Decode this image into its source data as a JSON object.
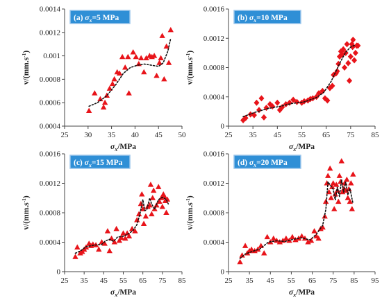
{
  "colors": {
    "marker": "#e8141a",
    "fit": "#111111",
    "label_box": "#2f8fd6",
    "label_border": "#9cc6ec",
    "axis": "#444444"
  },
  "chart_data": [
    {
      "type": "scatter",
      "panel_label": "(a) σx=5 MPa",
      "marker": "triangle",
      "xlabel": "σx/MPa",
      "ylabel": "v/(mm.s-1)",
      "xlim": [
        25,
        50
      ],
      "ylim": [
        0.0004,
        0.0014
      ],
      "xticks": [
        "25",
        "30",
        "35",
        "40",
        "45",
        "50"
      ],
      "yticks": [
        "0.0004",
        "0.0006",
        "0.0008",
        "0.001",
        "0.0012",
        "0.0014"
      ],
      "points": [
        [
          30.2,
          0.00053
        ],
        [
          31.4,
          0.00068
        ],
        [
          32.6,
          0.00063
        ],
        [
          33.3,
          0.00056
        ],
        [
          33.6,
          0.0006
        ],
        [
          34,
          0.00066
        ],
        [
          34.6,
          0.00072
        ],
        [
          35.2,
          0.00076
        ],
        [
          35.6,
          0.0008
        ],
        [
          36.2,
          0.00086
        ],
        [
          36.7,
          0.00085
        ],
        [
          37.3,
          0.00099
        ],
        [
          37.9,
          0.0009
        ],
        [
          38.5,
          0.00099
        ],
        [
          38.7,
          0.00068
        ],
        [
          39.6,
          0.00103
        ],
        [
          40.2,
          0.00099
        ],
        [
          40.8,
          0.00093
        ],
        [
          41.3,
          0.00098
        ],
        [
          41.9,
          0.00086
        ],
        [
          42.4,
          0.00098
        ],
        [
          43.1,
          0.001
        ],
        [
          43.6,
          0.00099
        ],
        [
          44.1,
          0.001
        ],
        [
          44.6,
          0.00083
        ],
        [
          45.2,
          0.00094
        ],
        [
          45.5,
          0.00098
        ],
        [
          45.8,
          0.00117
        ],
        [
          46.2,
          0.0008
        ],
        [
          46.7,
          0.00108
        ],
        [
          47.2,
          0.00094
        ],
        [
          47.6,
          0.00122
        ]
      ],
      "fit": [
        [
          30.2,
          0.00057
        ],
        [
          32,
          0.0006
        ],
        [
          34,
          0.00066
        ],
        [
          36,
          0.00076
        ],
        [
          37.5,
          0.00085
        ],
        [
          39,
          0.0009
        ],
        [
          40.5,
          0.00092
        ],
        [
          42,
          0.00093
        ],
        [
          43.5,
          0.00092
        ],
        [
          45,
          0.00091
        ],
        [
          46,
          0.00094
        ],
        [
          47,
          0.00104
        ],
        [
          47.6,
          0.00115
        ]
      ]
    },
    {
      "type": "scatter",
      "panel_label": "(b) σx=10 MPa",
      "marker": "diamond",
      "xlabel": "σx/MPa",
      "ylabel": "v/(mm.s-1)",
      "xlim": [
        25,
        85
      ],
      "ylim": [
        0,
        0.0016
      ],
      "xticks": [
        "25",
        "35",
        "45",
        "55",
        "65",
        "75",
        "85"
      ],
      "yticks": [
        "0",
        "0.0004",
        "0.0008",
        "0.0012",
        "0.0016"
      ],
      "points": [
        [
          31,
          8e-05
        ],
        [
          32,
          0.00011
        ],
        [
          34,
          0.00016
        ],
        [
          35.5,
          0.00015
        ],
        [
          36.5,
          0.00032
        ],
        [
          37.5,
          0.00022
        ],
        [
          38.5,
          0.00038
        ],
        [
          39.5,
          0.00012
        ],
        [
          40.5,
          0.00025
        ],
        [
          42,
          0.0003
        ],
        [
          43,
          0.00027
        ],
        [
          45,
          0.00032
        ],
        [
          46,
          0.00022
        ],
        [
          47,
          0.00026
        ],
        [
          48.5,
          0.0003
        ],
        [
          50,
          0.00032
        ],
        [
          51.5,
          0.00036
        ],
        [
          53,
          0.00033
        ],
        [
          55,
          0.00032
        ],
        [
          56,
          0.00034
        ],
        [
          57.5,
          0.00035
        ],
        [
          58.5,
          0.00037
        ],
        [
          59.5,
          0.00038
        ],
        [
          61,
          0.0004
        ],
        [
          62,
          0.00045
        ],
        [
          63.5,
          0.00048
        ],
        [
          64.5,
          0.00038
        ],
        [
          65.5,
          0.00035
        ],
        [
          66.5,
          0.00052
        ],
        [
          67.5,
          0.00055
        ],
        [
          68,
          0.0007
        ],
        [
          69,
          0.00072
        ],
        [
          69.5,
          0.00075
        ],
        [
          70,
          0.00085
        ],
        [
          70.5,
          0.00095
        ],
        [
          71,
          0.00102
        ],
        [
          71.5,
          0.00098
        ],
        [
          72,
          0.00105
        ],
        [
          72.5,
          0.0008
        ],
        [
          73,
          0.001
        ],
        [
          73.5,
          0.00112
        ],
        [
          74,
          0.00086
        ],
        [
          74.5,
          0.00062
        ],
        [
          75,
          0.00095
        ],
        [
          75.5,
          0.00112
        ],
        [
          75.8,
          0.00108
        ],
        [
          76,
          0.00118
        ],
        [
          76.5,
          0.0009
        ],
        [
          77,
          0.001
        ],
        [
          77.5,
          0.0011
        ],
        [
          78,
          0.0011
        ]
      ],
      "fit": [
        [
          31,
          0.00013
        ],
        [
          36,
          0.00019
        ],
        [
          41,
          0.00024
        ],
        [
          46,
          0.00027
        ],
        [
          51,
          0.00031
        ],
        [
          56,
          0.00033
        ],
        [
          61,
          0.00039
        ],
        [
          64,
          0.00046
        ],
        [
          67,
          0.00061
        ],
        [
          69,
          0.00075
        ],
        [
          71,
          0.00089
        ],
        [
          73,
          0.00101
        ],
        [
          75,
          0.00108
        ],
        [
          77,
          0.00111
        ]
      ]
    },
    {
      "type": "scatter",
      "panel_label": "(c) σx=15 MPa",
      "marker": "triangle",
      "xlabel": "σx/MPa",
      "ylabel": "v/(mm.s-1)",
      "xlim": [
        25,
        85
      ],
      "ylim": [
        0,
        0.0016
      ],
      "xticks": [
        "25",
        "35",
        "45",
        "55",
        "65",
        "75",
        "85"
      ],
      "yticks": [
        "0",
        "0.0004",
        "0.0008",
        "0.0012",
        "0.0016"
      ],
      "points": [
        [
          30.5,
          0.0002
        ],
        [
          31.5,
          0.00033
        ],
        [
          33,
          0.00025
        ],
        [
          34,
          0.00027
        ],
        [
          35,
          0.0003
        ],
        [
          36,
          0.00033
        ],
        [
          37.5,
          0.00038
        ],
        [
          38.5,
          0.00035
        ],
        [
          39.5,
          0.00037
        ],
        [
          41,
          0.00036
        ],
        [
          42.5,
          0.0003
        ],
        [
          44,
          0.0004
        ],
        [
          45.5,
          0.00038
        ],
        [
          47,
          0.00055
        ],
        [
          48,
          0.00028
        ],
        [
          49,
          0.00045
        ],
        [
          50.5,
          0.0004
        ],
        [
          51.5,
          0.00058
        ],
        [
          53,
          0.00042
        ],
        [
          54,
          0.00046
        ],
        [
          55,
          0.00052
        ],
        [
          56,
          0.00045
        ],
        [
          57,
          0.00052
        ],
        [
          58,
          0.00048
        ],
        [
          59.5,
          0.00058
        ],
        [
          61,
          0.00055
        ],
        [
          62,
          0.0007
        ],
        [
          63,
          0.00078
        ],
        [
          64,
          0.00092
        ],
        [
          64.5,
          0.00105
        ],
        [
          65,
          0.00085
        ],
        [
          65.5,
          0.00065
        ],
        [
          66.5,
          0.00075
        ],
        [
          67.5,
          0.00088
        ],
        [
          68.5,
          0.0009
        ],
        [
          69,
          0.00118
        ],
        [
          69.5,
          0.00078
        ],
        [
          70,
          0.001
        ],
        [
          70.5,
          0.0011
        ],
        [
          71,
          0.00085
        ],
        [
          72,
          0.0009
        ],
        [
          73,
          0.00115
        ],
        [
          73.5,
          0.00095
        ],
        [
          74.5,
          0.001
        ],
        [
          75,
          0.00088
        ],
        [
          75.5,
          0.00105
        ],
        [
          76,
          0.00102
        ],
        [
          76.5,
          0.00096
        ],
        [
          77,
          0.0008
        ],
        [
          77.5,
          0.00098
        ]
      ],
      "fit": [
        [
          30.5,
          0.00025
        ],
        [
          33,
          0.00028
        ],
        [
          36,
          0.00034
        ],
        [
          40,
          0.00036
        ],
        [
          44,
          0.00037
        ],
        [
          46,
          0.00042
        ],
        [
          48,
          0.00044
        ],
        [
          50,
          0.00041
        ],
        [
          52,
          0.00047
        ],
        [
          55,
          0.00048
        ],
        [
          58,
          0.00052
        ],
        [
          60,
          0.00056
        ],
        [
          62,
          0.00064
        ],
        [
          63.5,
          0.00078
        ],
        [
          65,
          0.00098
        ],
        [
          66,
          0.00083
        ],
        [
          67,
          0.00084
        ],
        [
          68.5,
          0.001
        ],
        [
          69.5,
          0.00092
        ],
        [
          71,
          0.00085
        ],
        [
          73,
          0.00098
        ],
        [
          75,
          0.00101
        ],
        [
          77,
          0.00098
        ],
        [
          78,
          0.00092
        ]
      ]
    },
    {
      "type": "scatter",
      "panel_label": "(d) σx=20 MPa",
      "marker": "triangle",
      "xlabel": "σx/MPa",
      "ylabel": "v/(mm.s-1)",
      "xlim": [
        25,
        95
      ],
      "ylim": [
        0,
        0.0016
      ],
      "xticks": [
        "25",
        "35",
        "45",
        "55",
        "65",
        "75",
        "85",
        "95"
      ],
      "yticks": [
        "0",
        "0.0004",
        "0.0008",
        "0.0012",
        "0.0016"
      ],
      "points": [
        [
          30.5,
          0.00013
        ],
        [
          31.5,
          0.00022
        ],
        [
          33,
          0.00035
        ],
        [
          34,
          0.00025
        ],
        [
          35,
          0.00028
        ],
        [
          36,
          0.0003
        ],
        [
          37.5,
          0.00028
        ],
        [
          39,
          0.0003
        ],
        [
          40.5,
          0.00035
        ],
        [
          42,
          0.00025
        ],
        [
          43.5,
          0.00047
        ],
        [
          45,
          0.0004
        ],
        [
          46.5,
          0.00045
        ],
        [
          48,
          0.00042
        ],
        [
          49.5,
          0.0004
        ],
        [
          51,
          0.00042
        ],
        [
          52.5,
          0.00045
        ],
        [
          54,
          0.00042
        ],
        [
          55.5,
          0.00047
        ],
        [
          57,
          0.00043
        ],
        [
          58.5,
          0.00045
        ],
        [
          60,
          0.00048
        ],
        [
          61.5,
          0.00045
        ],
        [
          63,
          0.0004
        ],
        [
          64.5,
          0.00042
        ],
        [
          66,
          0.00055
        ],
        [
          67,
          0.00048
        ],
        [
          68,
          0.00045
        ],
        [
          69,
          0.00058
        ],
        [
          70,
          0.0006
        ],
        [
          71,
          0.00075
        ],
        [
          71.5,
          0.00095
        ],
        [
          72,
          0.0012
        ],
        [
          72.5,
          0.0013
        ],
        [
          73,
          0.00108
        ],
        [
          73.5,
          0.0014
        ],
        [
          74,
          0.001
        ],
        [
          74.5,
          0.00115
        ],
        [
          75,
          0.0012
        ],
        [
          75.5,
          0.00085
        ],
        [
          76,
          0.00105
        ],
        [
          76.5,
          0.00118
        ],
        [
          77,
          0.0011
        ],
        [
          77.5,
          0.00095
        ],
        [
          78,
          0.0013
        ],
        [
          78.5,
          0.00122
        ],
        [
          79,
          0.0015
        ],
        [
          79.5,
          0.00108
        ],
        [
          80,
          0.00112
        ],
        [
          80.5,
          0.0012
        ],
        [
          81,
          0.0011
        ],
        [
          81.5,
          0.00125
        ],
        [
          82,
          0.001
        ],
        [
          82.5,
          0.00112
        ],
        [
          83,
          0.00095
        ],
        [
          83.5,
          0.0012
        ],
        [
          84,
          0.00085
        ],
        [
          84.5,
          0.00132
        ]
      ],
      "fit": [
        [
          30.5,
          0.00018
        ],
        [
          33,
          0.00024
        ],
        [
          36,
          0.00027
        ],
        [
          40,
          0.00031
        ],
        [
          44,
          0.0004
        ],
        [
          48,
          0.00042
        ],
        [
          52,
          0.00041
        ],
        [
          56,
          0.00044
        ],
        [
          60,
          0.00046
        ],
        [
          64,
          0.00043
        ],
        [
          67,
          0.00051
        ],
        [
          70,
          0.00063
        ],
        [
          71.5,
          0.00085
        ],
        [
          72.5,
          0.00122
        ],
        [
          73.5,
          0.00118
        ],
        [
          75,
          0.00112
        ],
        [
          76,
          0.00097
        ],
        [
          77,
          0.00115
        ],
        [
          78,
          0.00102
        ],
        [
          79,
          0.00125
        ],
        [
          80,
          0.00108
        ],
        [
          81,
          0.00122
        ],
        [
          82,
          0.00104
        ],
        [
          83,
          0.00113
        ],
        [
          84,
          0.00099
        ],
        [
          84.5,
          0.00092
        ]
      ]
    }
  ]
}
